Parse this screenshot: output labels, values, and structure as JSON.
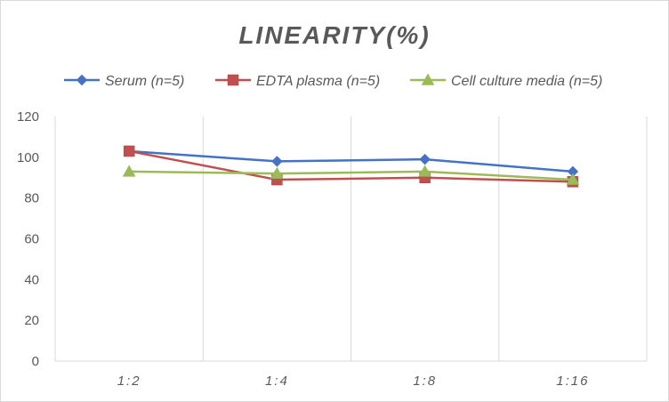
{
  "chart_data": {
    "type": "line",
    "title": "LINEARITY(%)",
    "xlabel": "",
    "ylabel": "",
    "categories": [
      "1:2",
      "1:4",
      "1:8",
      "1:16"
    ],
    "ylim": [
      0,
      120
    ],
    "yticks": [
      0,
      20,
      40,
      60,
      80,
      100,
      120
    ],
    "grid": "vertical",
    "legend_position": "top",
    "series": [
      {
        "name": "Serum (n=5)",
        "values": [
          103,
          98,
          99,
          93
        ],
        "color": "#4472c4",
        "marker": "diamond"
      },
      {
        "name": "EDTA plasma (n=5)",
        "values": [
          103,
          89,
          90,
          88
        ],
        "color": "#c0504d",
        "marker": "square"
      },
      {
        "name": "Cell culture media (n=5)",
        "values": [
          93,
          92,
          93,
          89
        ],
        "color": "#9bbb59",
        "marker": "triangle"
      }
    ]
  }
}
